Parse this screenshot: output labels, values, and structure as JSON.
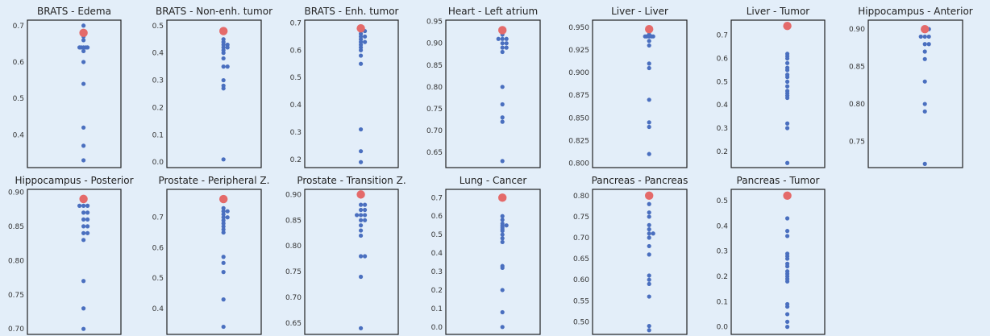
{
  "colors": {
    "background": "#e3eef9",
    "point": "#4a6fbf",
    "highlight": "#e46a6a",
    "frame": "#222222"
  },
  "chart_data": [
    {
      "type": "scatter",
      "title": "BRATS - Edema",
      "yticks": [
        "0.4",
        "0.5",
        "0.6",
        "0.7"
      ],
      "ylim": [
        0.31,
        0.715
      ],
      "values": [
        0.7,
        0.68,
        0.67,
        0.66,
        0.64,
        0.64,
        0.64,
        0.64,
        0.64,
        0.63,
        0.6,
        0.54,
        0.42,
        0.37,
        0.33
      ],
      "highlight": 0.68
    },
    {
      "type": "scatter",
      "title": "BRATS - Non-enh. tumor",
      "yticks": [
        "0.0",
        "0.1",
        "0.2",
        "0.3",
        "0.4",
        "0.5"
      ],
      "ylim": [
        -0.02,
        0.52
      ],
      "values": [
        0.45,
        0.44,
        0.43,
        0.43,
        0.42,
        0.42,
        0.41,
        0.4,
        0.38,
        0.35,
        0.35,
        0.3,
        0.28,
        0.27,
        0.01
      ],
      "highlight": 0.48
    },
    {
      "type": "scatter",
      "title": "BRATS - Enh. tumor",
      "yticks": [
        "0.2",
        "0.3",
        "0.4",
        "0.5",
        "0.6",
        "0.7"
      ],
      "ylim": [
        0.17,
        0.71
      ],
      "values": [
        0.68,
        0.67,
        0.67,
        0.66,
        0.65,
        0.65,
        0.64,
        0.63,
        0.63,
        0.62,
        0.61,
        0.6,
        0.58,
        0.55,
        0.31,
        0.23,
        0.19
      ],
      "highlight": 0.68
    },
    {
      "type": "scatter",
      "title": "Heart - Left atrium",
      "yticks": [
        "0.65",
        "0.70",
        "0.75",
        "0.80",
        "0.85",
        "0.90",
        "0.95"
      ],
      "ylim": [
        0.615,
        0.953
      ],
      "values": [
        0.92,
        0.91,
        0.91,
        0.91,
        0.9,
        0.9,
        0.89,
        0.89,
        0.88,
        0.8,
        0.76,
        0.73,
        0.72,
        0.63
      ],
      "highlight": 0.93
    },
    {
      "type": "scatter",
      "title": "Liver - Liver",
      "yticks": [
        "0.800",
        "0.825",
        "0.850",
        "0.875",
        "0.900",
        "0.925",
        "0.950"
      ],
      "ylim": [
        0.795,
        0.958
      ],
      "values": [
        0.948,
        0.945,
        0.942,
        0.94,
        0.94,
        0.94,
        0.94,
        0.94,
        0.935,
        0.93,
        0.91,
        0.905,
        0.87,
        0.845,
        0.84,
        0.81
      ],
      "highlight": 0.948
    },
    {
      "type": "scatter",
      "title": "Liver - Tumor",
      "yticks": [
        "0.2",
        "0.3",
        "0.4",
        "0.5",
        "0.6",
        "0.7"
      ],
      "ylim": [
        0.13,
        0.765
      ],
      "values": [
        0.62,
        0.61,
        0.6,
        0.58,
        0.56,
        0.55,
        0.53,
        0.52,
        0.5,
        0.48,
        0.46,
        0.45,
        0.44,
        0.43,
        0.32,
        0.3,
        0.15
      ],
      "highlight": 0.74
    },
    {
      "type": "scatter",
      "title": "Hippocampus - Anterior",
      "yticks": [
        "0.75",
        "0.80",
        "0.85",
        "0.90"
      ],
      "ylim": [
        0.715,
        0.912
      ],
      "values": [
        0.9,
        0.9,
        0.89,
        0.89,
        0.89,
        0.88,
        0.88,
        0.87,
        0.86,
        0.83,
        0.8,
        0.79,
        0.72
      ],
      "highlight": 0.9
    },
    {
      "type": "scatter",
      "title": "Hippocampus - Posterior",
      "yticks": [
        "0.70",
        "0.75",
        "0.80",
        "0.85",
        "0.90"
      ],
      "ylim": [
        0.692,
        0.904
      ],
      "values": [
        0.89,
        0.88,
        0.88,
        0.88,
        0.87,
        0.87,
        0.86,
        0.86,
        0.85,
        0.85,
        0.84,
        0.84,
        0.83,
        0.77,
        0.73,
        0.7
      ],
      "highlight": 0.89
    },
    {
      "type": "scatter",
      "title": "Prostate - Peripheral Z.",
      "yticks": [
        "0.4",
        "0.5",
        "0.6",
        "0.7"
      ],
      "ylim": [
        0.315,
        0.792
      ],
      "values": [
        0.73,
        0.72,
        0.72,
        0.71,
        0.7,
        0.7,
        0.69,
        0.68,
        0.67,
        0.66,
        0.65,
        0.57,
        0.55,
        0.52,
        0.43,
        0.34
      ],
      "highlight": 0.76
    },
    {
      "type": "scatter",
      "title": "Prostate - Transition Z.",
      "yticks": [
        "0.65",
        "0.70",
        "0.75",
        "0.80",
        "0.85",
        "0.90"
      ],
      "ylim": [
        0.628,
        0.91
      ],
      "values": [
        0.88,
        0.88,
        0.87,
        0.87,
        0.86,
        0.86,
        0.86,
        0.85,
        0.85,
        0.84,
        0.83,
        0.82,
        0.78,
        0.78,
        0.74,
        0.64
      ],
      "highlight": 0.9
    },
    {
      "type": "scatter",
      "title": "Lung - Cancer",
      "yticks": [
        "0.0",
        "0.1",
        "0.2",
        "0.3",
        "0.4",
        "0.5",
        "0.6",
        "0.7"
      ],
      "ylim": [
        -0.04,
        0.745
      ],
      "values": [
        0.6,
        0.58,
        0.56,
        0.55,
        0.55,
        0.54,
        0.53,
        0.52,
        0.5,
        0.48,
        0.46,
        0.33,
        0.32,
        0.2,
        0.08,
        0.0
      ],
      "highlight": 0.7
    },
    {
      "type": "scatter",
      "title": "Pancreas - Pancreas",
      "yticks": [
        "0.50",
        "0.55",
        "0.60",
        "0.65",
        "0.70",
        "0.75",
        "0.80"
      ],
      "ylim": [
        0.47,
        0.815
      ],
      "values": [
        0.78,
        0.76,
        0.75,
        0.73,
        0.72,
        0.71,
        0.71,
        0.7,
        0.68,
        0.66,
        0.61,
        0.6,
        0.59,
        0.56,
        0.49,
        0.48
      ],
      "highlight": 0.8
    },
    {
      "type": "scatter",
      "title": "Pancreas - Tumor",
      "yticks": [
        "0.0",
        "0.1",
        "0.2",
        "0.3",
        "0.4",
        "0.5"
      ],
      "ylim": [
        -0.03,
        0.545
      ],
      "values": [
        0.43,
        0.38,
        0.36,
        0.29,
        0.28,
        0.27,
        0.25,
        0.24,
        0.22,
        0.21,
        0.2,
        0.19,
        0.18,
        0.09,
        0.08,
        0.05,
        0.02,
        0.0
      ],
      "highlight": 0.52
    }
  ]
}
